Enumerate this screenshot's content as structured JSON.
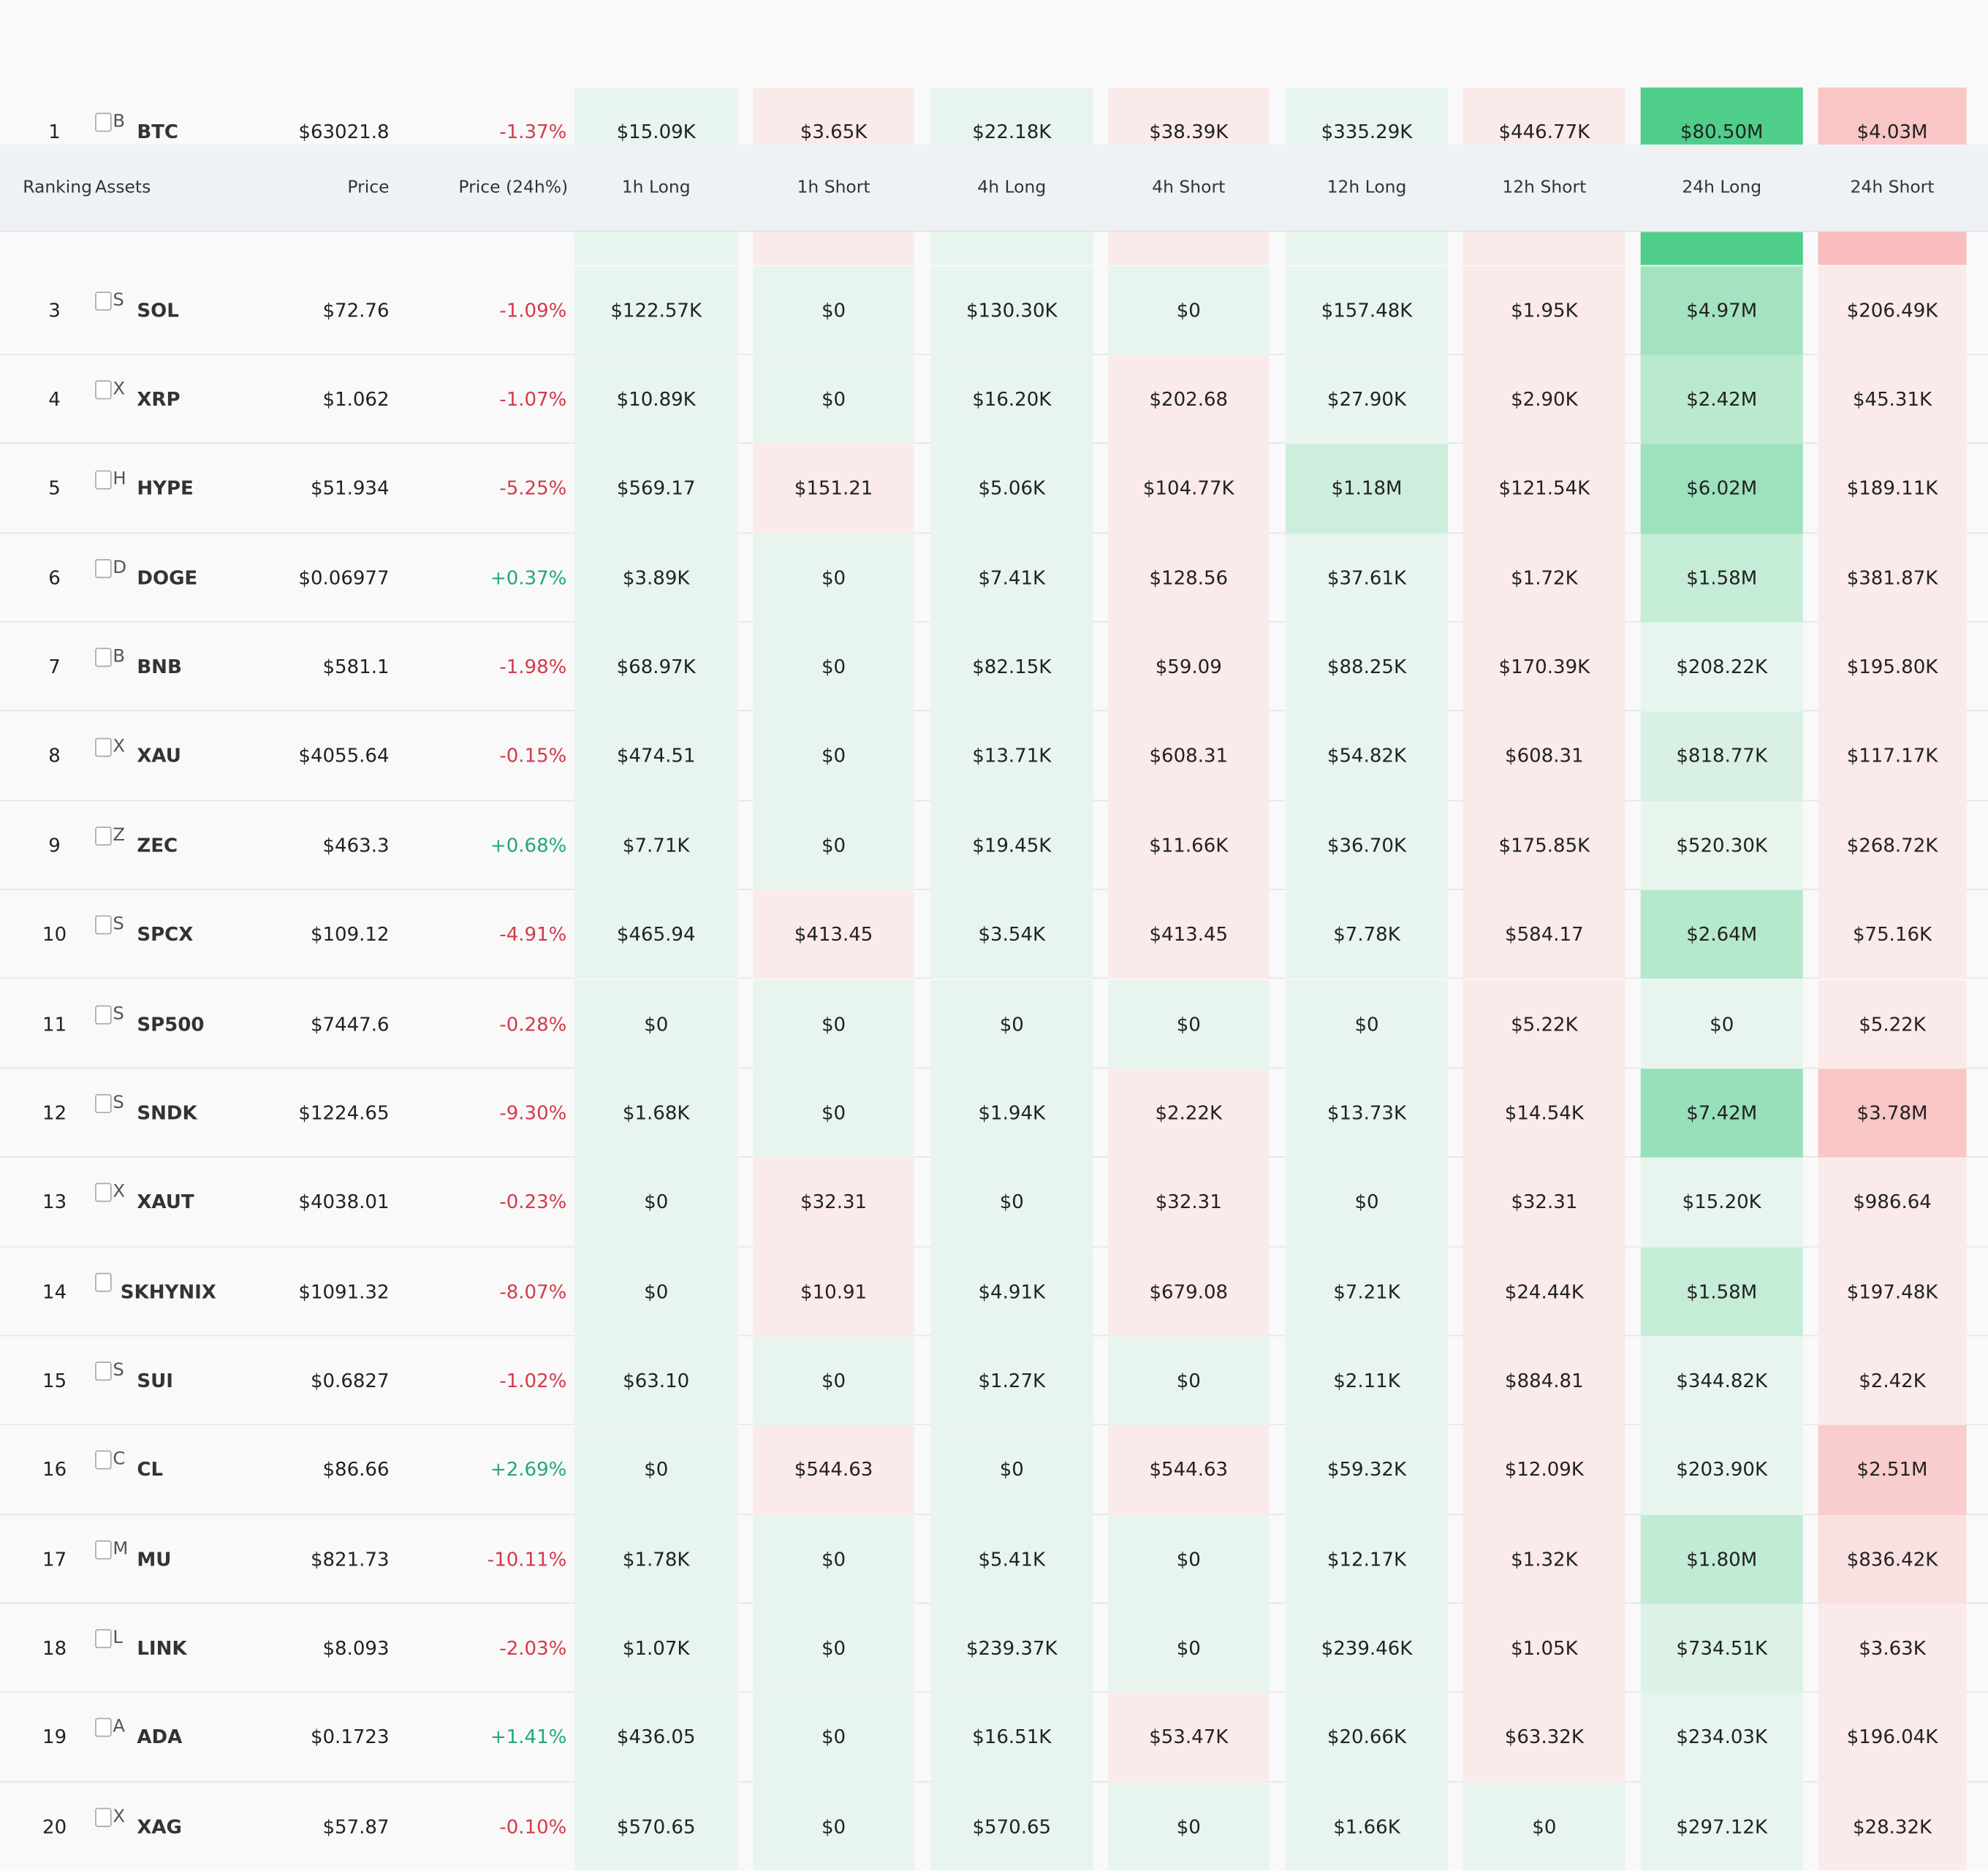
{
  "header": {
    "columns": [
      "Ranking",
      "Assets",
      "Price",
      "Price (24h%)",
      "1h Long",
      "1h Short",
      "4h Long",
      "4h Short",
      "12h Long",
      "12h Short",
      "24h Long",
      "24h Short"
    ]
  },
  "rows": [
    {
      "rank": "1",
      "icon": "B",
      "asset": "BTC",
      "price": "$63021.8",
      "change": "-1.37%",
      "cells": [
        "$15.09K",
        "$3.65K",
        "$22.18K",
        "$38.39K",
        "$335.29K",
        "$446.77K",
        "$80.50M",
        "$4.03M"
      ]
    },
    {
      "rank": "3",
      "icon": "S",
      "asset": "SOL",
      "price": "$72.76",
      "change": "-1.09%",
      "cells": [
        "$122.57K",
        "$0",
        "$130.30K",
        "$0",
        "$157.48K",
        "$1.95K",
        "$4.97M",
        "$206.49K"
      ]
    },
    {
      "rank": "4",
      "icon": "X",
      "asset": "XRP",
      "price": "$1.062",
      "change": "-1.07%",
      "cells": [
        "$10.89K",
        "$0",
        "$16.20K",
        "$202.68",
        "$27.90K",
        "$2.90K",
        "$2.42M",
        "$45.31K"
      ]
    },
    {
      "rank": "5",
      "icon": "H",
      "asset": "HYPE",
      "price": "$51.934",
      "change": "-5.25%",
      "cells": [
        "$569.17",
        "$151.21",
        "$5.06K",
        "$104.77K",
        "$1.18M",
        "$121.54K",
        "$6.02M",
        "$189.11K"
      ]
    },
    {
      "rank": "6",
      "icon": "D",
      "asset": "DOGE",
      "price": "$0.06977",
      "change": "+0.37%",
      "cells": [
        "$3.89K",
        "$0",
        "$7.41K",
        "$128.56",
        "$37.61K",
        "$1.72K",
        "$1.58M",
        "$381.87K"
      ]
    },
    {
      "rank": "7",
      "icon": "B",
      "asset": "BNB",
      "price": "$581.1",
      "change": "-1.98%",
      "cells": [
        "$68.97K",
        "$0",
        "$82.15K",
        "$59.09",
        "$88.25K",
        "$170.39K",
        "$208.22K",
        "$195.80K"
      ]
    },
    {
      "rank": "8",
      "icon": "X",
      "asset": "XAU",
      "price": "$4055.64",
      "change": "-0.15%",
      "cells": [
        "$474.51",
        "$0",
        "$13.71K",
        "$608.31",
        "$54.82K",
        "$608.31",
        "$818.77K",
        "$117.17K"
      ]
    },
    {
      "rank": "9",
      "icon": "Z",
      "asset": "ZEC",
      "price": "$463.3",
      "change": "+0.68%",
      "cells": [
        "$7.71K",
        "$0",
        "$19.45K",
        "$11.66K",
        "$36.70K",
        "$175.85K",
        "$520.30K",
        "$268.72K"
      ]
    },
    {
      "rank": "10",
      "icon": "S",
      "asset": "SPCX",
      "price": "$109.12",
      "change": "-4.91%",
      "cells": [
        "$465.94",
        "$413.45",
        "$3.54K",
        "$413.45",
        "$7.78K",
        "$584.17",
        "$2.64M",
        "$75.16K"
      ]
    },
    {
      "rank": "11",
      "icon": "S",
      "asset": "SP500",
      "price": "$7447.6",
      "change": "-0.28%",
      "cells": [
        "$0",
        "$0",
        "$0",
        "$0",
        "$0",
        "$5.22K",
        "$0",
        "$5.22K"
      ]
    },
    {
      "rank": "12",
      "icon": "S",
      "asset": "SNDK",
      "price": "$1224.65",
      "change": "-9.30%",
      "cells": [
        "$1.68K",
        "$0",
        "$1.94K",
        "$2.22K",
        "$13.73K",
        "$14.54K",
        "$7.42M",
        "$3.78M"
      ]
    },
    {
      "rank": "13",
      "icon": "X",
      "asset": "XAUT",
      "price": "$4038.01",
      "change": "-0.23%",
      "cells": [
        "$0",
        "$32.31",
        "$0",
        "$32.31",
        "$0",
        "$32.31",
        "$15.20K",
        "$986.64"
      ]
    },
    {
      "rank": "14",
      "asset": "SKHYNIX",
      "price": "$1091.32",
      "change": "-8.07%",
      "cells": [
        "$0",
        "$10.91",
        "$4.91K",
        "$679.08",
        "$7.21K",
        "$24.44K",
        "$1.58M",
        "$197.48K"
      ]
    },
    {
      "rank": "15",
      "icon": "S",
      "asset": "SUI",
      "price": "$0.6827",
      "change": "-1.02%",
      "cells": [
        "$63.10",
        "$0",
        "$1.27K",
        "$0",
        "$2.11K",
        "$884.81",
        "$344.82K",
        "$2.42K"
      ]
    },
    {
      "rank": "16",
      "icon": "C",
      "asset": "CL",
      "price": "$86.66",
      "change": "+2.69%",
      "cells": [
        "$0",
        "$544.63",
        "$0",
        "$544.63",
        "$59.32K",
        "$12.09K",
        "$203.90K",
        "$2.51M"
      ]
    },
    {
      "rank": "17",
      "icon": "M",
      "asset": "MU",
      "price": "$821.73",
      "change": "-10.11%",
      "cells": [
        "$1.78K",
        "$0",
        "$5.41K",
        "$0",
        "$12.17K",
        "$1.32K",
        "$1.80M",
        "$836.42K"
      ]
    },
    {
      "rank": "18",
      "icon": "L",
      "asset": "LINK",
      "price": "$8.093",
      "change": "-2.03%",
      "cells": [
        "$1.07K",
        "$0",
        "$239.37K",
        "$0",
        "$239.46K",
        "$1.05K",
        "$734.51K",
        "$3.63K"
      ]
    },
    {
      "rank": "19",
      "icon": "A",
      "asset": "ADA",
      "price": "$0.1723",
      "change": "+1.41%",
      "cells": [
        "$436.05",
        "$0",
        "$16.51K",
        "$53.47K",
        "$20.66K",
        "$63.32K",
        "$234.03K",
        "$196.04K"
      ]
    },
    {
      "rank": "20",
      "icon": "X",
      "asset": "XAG",
      "price": "$57.87",
      "change": "-0.10%",
      "cells": [
        "$570.65",
        "$0",
        "$570.65",
        "$0",
        "$1.66K",
        "$0",
        "$297.12K",
        "$28.32K"
      ]
    }
  ]
}
